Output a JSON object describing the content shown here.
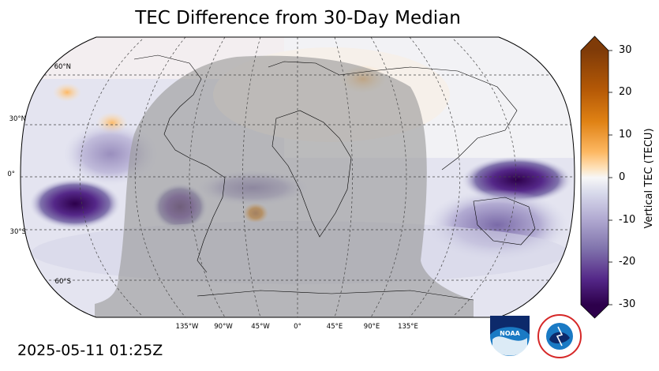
{
  "title": "TEC Difference from 30-Day Median",
  "timestamp": "2025-05-11 01:25Z",
  "latitude_labels": [
    "60°N",
    "30°N",
    "0°",
    "30°S",
    "60°S"
  ],
  "longitude_labels": [
    "135°W",
    "90°W",
    "45°W",
    "0°",
    "45°E",
    "90°E",
    "135°E"
  ],
  "colorbar": {
    "label": "Vertical TEC (TECU)",
    "ticks": [
      "30",
      "20",
      "10",
      "0",
      "-10",
      "-20",
      "-30"
    ],
    "range": [
      -30,
      30
    ],
    "colormap": "PuOr_r (purple negative, orange positive)",
    "high_color": "#7f3b08",
    "mid_color": "#f7f7f7",
    "low_color": "#2d004b"
  },
  "map": {
    "projection": "Robinson",
    "central_longitude": 0,
    "gridlines": "dashed",
    "night_shading": "grey overlay on night-side hemisphere"
  },
  "logos": {
    "noaa_text": "NOAA",
    "nws_text": "NATIONAL WEATHER SERVICE"
  }
}
